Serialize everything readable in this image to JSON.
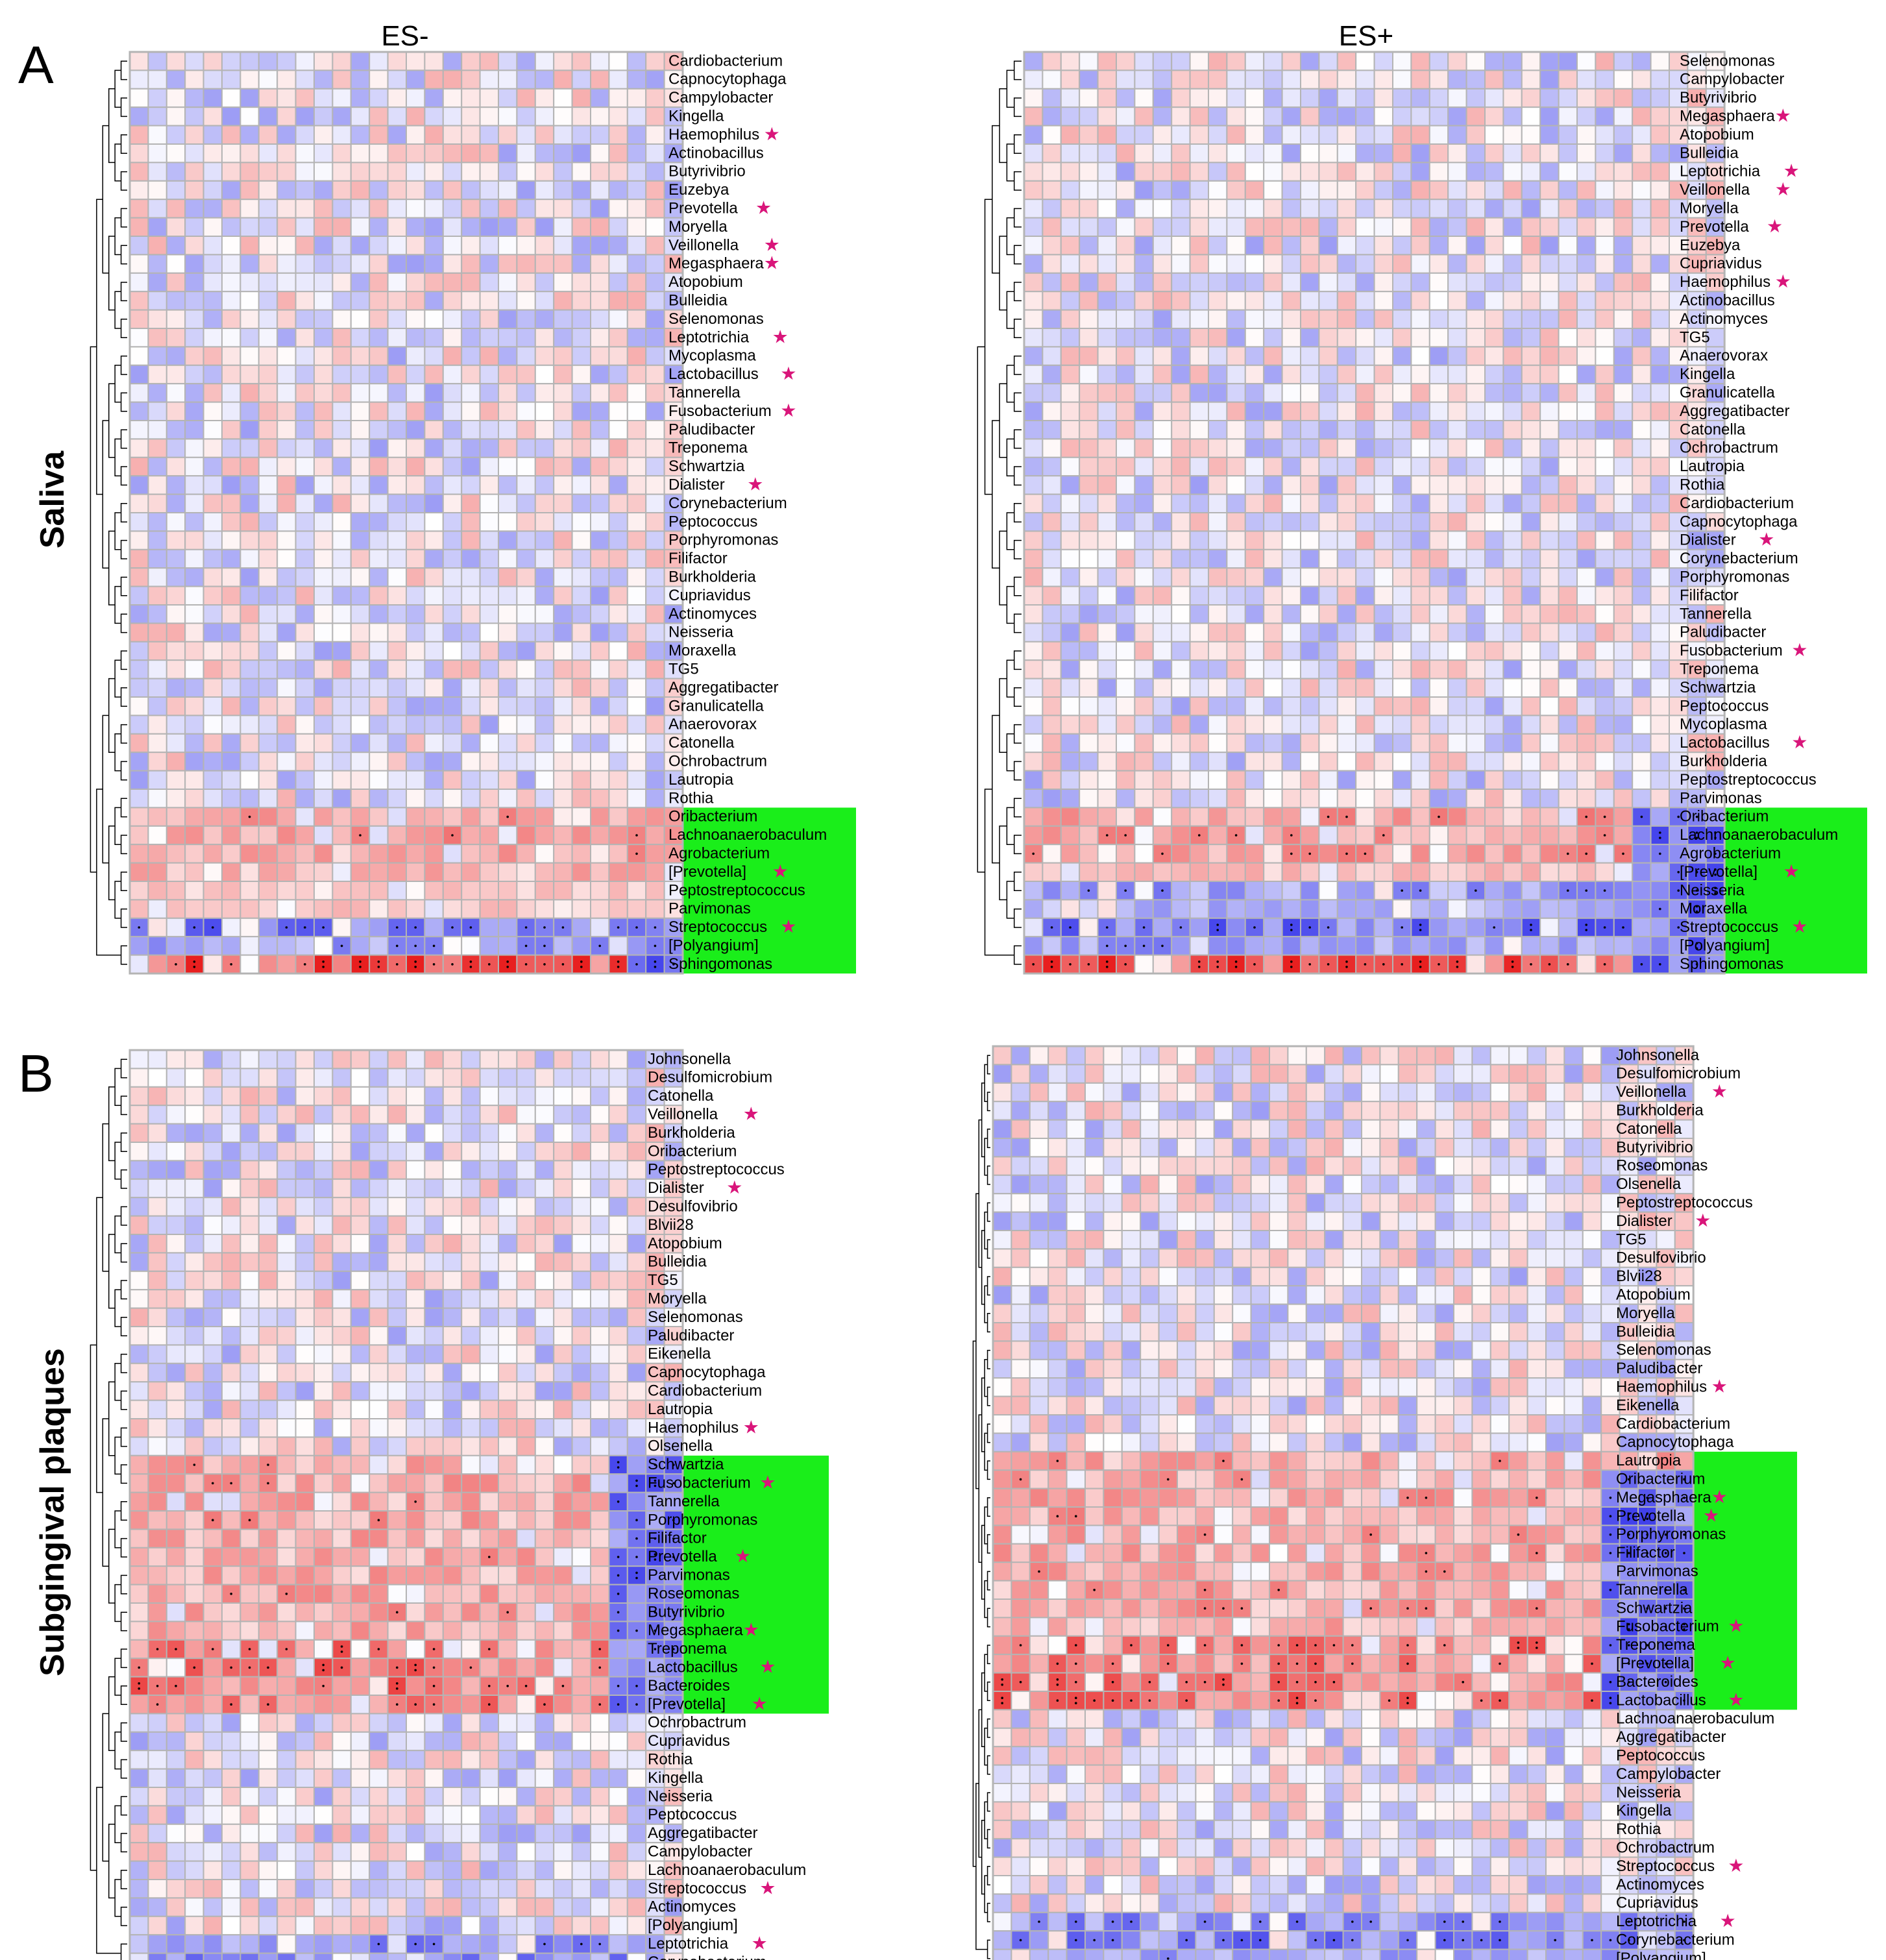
{
  "figure": {
    "panels": [
      {
        "letter": "A",
        "group_label": "Saliva"
      },
      {
        "letter": "B",
        "group_label": "Subgingival plaques"
      }
    ],
    "column_titles": [
      "ES-",
      "ES+"
    ],
    "highlight_color": "#1aee1a",
    "star_symbol": "★",
    "star_color": "#d9157a",
    "color_scale": {
      "negative": "#1f1fe8",
      "zero": "#ffffff",
      "positive": "#e81f1f",
      "border": "#b4b4b4"
    }
  },
  "chart_data": [
    {
      "type": "heatmap",
      "panel": "A",
      "group": "Saliva",
      "title": "ES-",
      "n_columns": 30,
      "rows": [
        "Cardiobacterium",
        "Capnocytophaga",
        "Campylobacter",
        "Kingella",
        "Haemophilus",
        "Actinobacillus",
        "Butyrivibrio",
        "Euzebya",
        "Prevotella",
        "Moryella",
        "Veillonella",
        "Megasphaera",
        "Atopobium",
        "Bulleidia",
        "Selenomonas",
        "Leptotrichia",
        "Mycoplasma",
        "Lactobacillus",
        "Tannerella",
        "Fusobacterium",
        "Paludibacter",
        "Treponema",
        "Schwartzia",
        "Dialister",
        "Corynebacterium",
        "Peptococcus",
        "Porphyromonas",
        "Filifactor",
        "Burkholderia",
        "Cupriavidus",
        "Actinomyces",
        "Neisseria",
        "Moraxella",
        "TG5",
        "Aggregatibacter",
        "Granulicatella",
        "Anaerovorax",
        "Catonella",
        "Ochrobactrum",
        "Lautropia",
        "Rothia",
        "Oribacterium",
        "Lachnoanaerobaculum",
        "Agrobacterium",
        "[Prevotella]",
        "Peptostreptococcus",
        "Parvimonas",
        "Streptococcus",
        "[Polyangium]",
        "Sphingomonas"
      ],
      "starred": [
        "Haemophilus",
        "Prevotella",
        "Veillonella",
        "Megasphaera",
        "Leptotrichia",
        "Lactobacillus",
        "Fusobacterium",
        "Dialister",
        "[Prevotella]",
        "Streptococcus"
      ],
      "highlighted": [
        "Oribacterium",
        "Lachnoanaerobaculum",
        "Agrobacterium",
        "[Prevotella]",
        "Peptostreptococcus",
        "Parvimonas",
        "Streptococcus",
        "[Polyangium]",
        "Sphingomonas"
      ],
      "highlight_text_color": "#006400",
      "row_patterns": {
        "Oribacterium": {
          "value": 0.45,
          "sign": 1
        },
        "Lachnoanaerobaculum": {
          "value": 0.45,
          "sign": 1
        },
        "Agrobacterium": {
          "value": 0.45,
          "sign": 1
        },
        "[Prevotella]": {
          "value": 0.35,
          "sign": 1
        },
        "Peptostreptococcus": {
          "value": 0.25,
          "sign": 1
        },
        "Parvimonas": {
          "value": 0.25,
          "sign": 1
        },
        "Streptococcus": {
          "value": 0.6,
          "sign": -1
        },
        "[Polyangium]": {
          "value": 0.45,
          "sign": -1
        },
        "Sphingomonas": {
          "value": 0.8,
          "sign": 1
        }
      },
      "right_block": {
        "columns": 3,
        "sign": -1,
        "rows_from": "Streptococcus"
      }
    },
    {
      "type": "heatmap",
      "panel": "A",
      "group": "Saliva",
      "title": "ES+",
      "n_columns": 38,
      "rows": [
        "Selenomonas",
        "Campylobacter",
        "Butyrivibrio",
        "Megasphaera",
        "Atopobium",
        "Bulleidia",
        "Leptotrichia",
        "Veillonella",
        "Moryella",
        "Prevotella",
        "Euzebya",
        "Cupriavidus",
        "Haemophilus",
        "Actinobacillus",
        "Actinomyces",
        "TG5",
        "Anaerovorax",
        "Kingella",
        "Granulicatella",
        "Aggregatibacter",
        "Catonella",
        "Ochrobactrum",
        "Lautropia",
        "Rothia",
        "Cardiobacterium",
        "Capnocytophaga",
        "Dialister",
        "Corynebacterium",
        "Porphyromonas",
        "Filifactor",
        "Tannerella",
        "Paludibacter",
        "Fusobacterium",
        "Treponema",
        "Schwartzia",
        "Peptococcus",
        "Mycoplasma",
        "Lactobacillus",
        "Burkholderia",
        "Peptostreptococcus",
        "Parvimonas",
        "Oribacterium",
        "Lachnoanaerobaculum",
        "Agrobacterium",
        "[Prevotella]",
        "Neisseria",
        "Moraxella",
        "Streptococcus",
        "[Polyangium]",
        "Sphingomonas"
      ],
      "starred": [
        "Megasphaera",
        "Leptotrichia",
        "Veillonella",
        "Prevotella",
        "Haemophilus",
        "Dialister",
        "Fusobacterium",
        "Lactobacillus",
        "[Prevotella]",
        "Streptococcus"
      ],
      "highlighted": [
        "Oribacterium",
        "Lachnoanaerobaculum",
        "Agrobacterium",
        "[Prevotella]",
        "Neisseria",
        "Moraxella",
        "Streptococcus",
        "[Polyangium]",
        "Sphingomonas"
      ],
      "highlight_text_color": "#006400",
      "row_patterns": {
        "Oribacterium": {
          "value": 0.45,
          "sign": 1
        },
        "Lachnoanaerobaculum": {
          "value": 0.45,
          "sign": 1
        },
        "Agrobacterium": {
          "value": 0.45,
          "sign": 1
        },
        "[Prevotella]": {
          "value": 0.3,
          "sign": 1
        },
        "Neisseria": {
          "value": 0.45,
          "sign": -1
        },
        "Moraxella": {
          "value": 0.35,
          "sign": -1
        },
        "Streptococcus": {
          "value": 0.6,
          "sign": -1
        },
        "[Polyangium]": {
          "value": 0.45,
          "sign": -1
        },
        "Sphingomonas": {
          "value": 0.8,
          "sign": 1
        }
      },
      "right_block": {
        "columns": 5,
        "sign": -1,
        "rows_from": "Oribacterium"
      }
    },
    {
      "type": "heatmap",
      "panel": "B",
      "group": "Subgingival plaques",
      "title": "ES-",
      "n_columns": 30,
      "rows": [
        "Johnsonella",
        "Desulfomicrobium",
        "Catonella",
        "Veillonella",
        "Burkholderia",
        "Oribacterium",
        "Peptostreptococcus",
        "Dialister",
        "Desulfovibrio",
        "Blvii28",
        "Atopobium",
        "Bulleidia",
        "TG5",
        "Moryella",
        "Selenomonas",
        "Paludibacter",
        "Eikenella",
        "Capnocytophaga",
        "Cardiobacterium",
        "Lautropia",
        "Haemophilus",
        "Olsenella",
        "Schwartzia",
        "Fusobacterium",
        "Tannerella",
        "Porphyromonas",
        "Filifactor",
        "Prevotella",
        "Parvimonas",
        "Roseomonas",
        "Butyrivibrio",
        "Megasphaera",
        "Treponema",
        "Lactobacillus",
        "Bacteroides",
        "[Prevotella]",
        "Ochrobactrum",
        "Cupriavidus",
        "Rothia",
        "Kingella",
        "Neisseria",
        "Peptococcus",
        "Aggregatibacter",
        "Campylobacter",
        "Lachnoanaerobaculum",
        "Streptococcus",
        "Actinomyces",
        "[Polyangium]",
        "Leptotrichia",
        "Corynebacterium"
      ],
      "starred": [
        "Veillonella",
        "Dialister",
        "Haemophilus",
        "Fusobacterium",
        "Prevotella",
        "Megasphaera",
        "Lactobacillus",
        "[Prevotella]",
        "Streptococcus",
        "Leptotrichia"
      ],
      "highlighted": [
        "Schwartzia",
        "Fusobacterium",
        "Tannerella",
        "Porphyromonas",
        "Filifactor",
        "Prevotella",
        "Parvimonas",
        "Roseomonas",
        "Butyrivibrio",
        "Megasphaera",
        "Treponema",
        "Lactobacillus",
        "Bacteroides",
        "[Prevotella]"
      ],
      "highlight_text_color": "#000000",
      "row_patterns": {
        "Treponema": {
          "value": 0.6,
          "sign": 1
        },
        "Lactobacillus": {
          "value": 0.6,
          "sign": 1
        },
        "Bacteroides": {
          "value": 0.6,
          "sign": 1
        },
        "[Prevotella]": {
          "value": 0.55,
          "sign": 1
        },
        "Leptotrichia": {
          "value": 0.5,
          "sign": -1
        },
        "Corynebacterium": {
          "value": 0.5,
          "sign": -1
        }
      },
      "right_block": {
        "columns": 4,
        "sign": -1,
        "rows_from": "Schwartzia",
        "rows_to": "[Prevotella]"
      }
    },
    {
      "type": "heatmap",
      "panel": "B",
      "group": "Subgingival plaques",
      "title": "ES+",
      "n_columns": 38,
      "rows": [
        "Johnsonella",
        "Desulfomicrobium",
        "Veillonella",
        "Burkholderia",
        "Catonella",
        "Butyrivibrio",
        "Roseomonas",
        "Olsenella",
        "Peptostreptococcus",
        "Dialister",
        "TG5",
        "Desulfovibrio",
        "Blvii28",
        "Atopobium",
        "Moryella",
        "Bulleidia",
        "Selenomonas",
        "Paludibacter",
        "Haemophilus",
        "Eikenella",
        "Cardiobacterium",
        "Capnocytophaga",
        "Lautropia",
        "Oribacterium",
        "Megasphaera",
        "Prevotella",
        "Porphyromonas",
        "Filifactor",
        "Parvimonas",
        "Tannerella",
        "Schwartzia",
        "Fusobacterium",
        "Treponema",
        "[Prevotella]",
        "Bacteroides",
        "Lactobacillus",
        "Lachnoanaerobaculum",
        "Aggregatibacter",
        "Peptococcus",
        "Campylobacter",
        "Neisseria",
        "Kingella",
        "Rothia",
        "Ochrobactrum",
        "Streptococcus",
        "Actinomyces",
        "Cupriavidus",
        "Leptotrichia",
        "Corynebacterium",
        "[Polyangium]"
      ],
      "starred": [
        "Veillonella",
        "Dialister",
        "Haemophilus",
        "Megasphaera",
        "Prevotella",
        "Fusobacterium",
        "[Prevotella]",
        "Lactobacillus",
        "Streptococcus",
        "Leptotrichia"
      ],
      "highlighted": [
        "Lautropia",
        "Oribacterium",
        "Megasphaera",
        "Prevotella",
        "Porphyromonas",
        "Filifactor",
        "Parvimonas",
        "Tannerella",
        "Schwartzia",
        "Fusobacterium",
        "Treponema",
        "[Prevotella]",
        "Bacteroides",
        "Lactobacillus"
      ],
      "highlight_text_color": "#000000",
      "row_patterns": {
        "Treponema": {
          "value": 0.6,
          "sign": 1
        },
        "[Prevotella]": {
          "value": 0.55,
          "sign": 1
        },
        "Bacteroides": {
          "value": 0.6,
          "sign": 1
        },
        "Lactobacillus": {
          "value": 0.6,
          "sign": 1
        },
        "Leptotrichia": {
          "value": 0.5,
          "sign": -1
        },
        "Corynebacterium": {
          "value": 0.55,
          "sign": -1
        },
        "[Polyangium]": {
          "value": 0.4,
          "sign": -1
        }
      },
      "right_block": {
        "columns": 5,
        "sign": -1,
        "rows_from": "Oribacterium",
        "rows_to": "Lactobacillus"
      }
    }
  ]
}
